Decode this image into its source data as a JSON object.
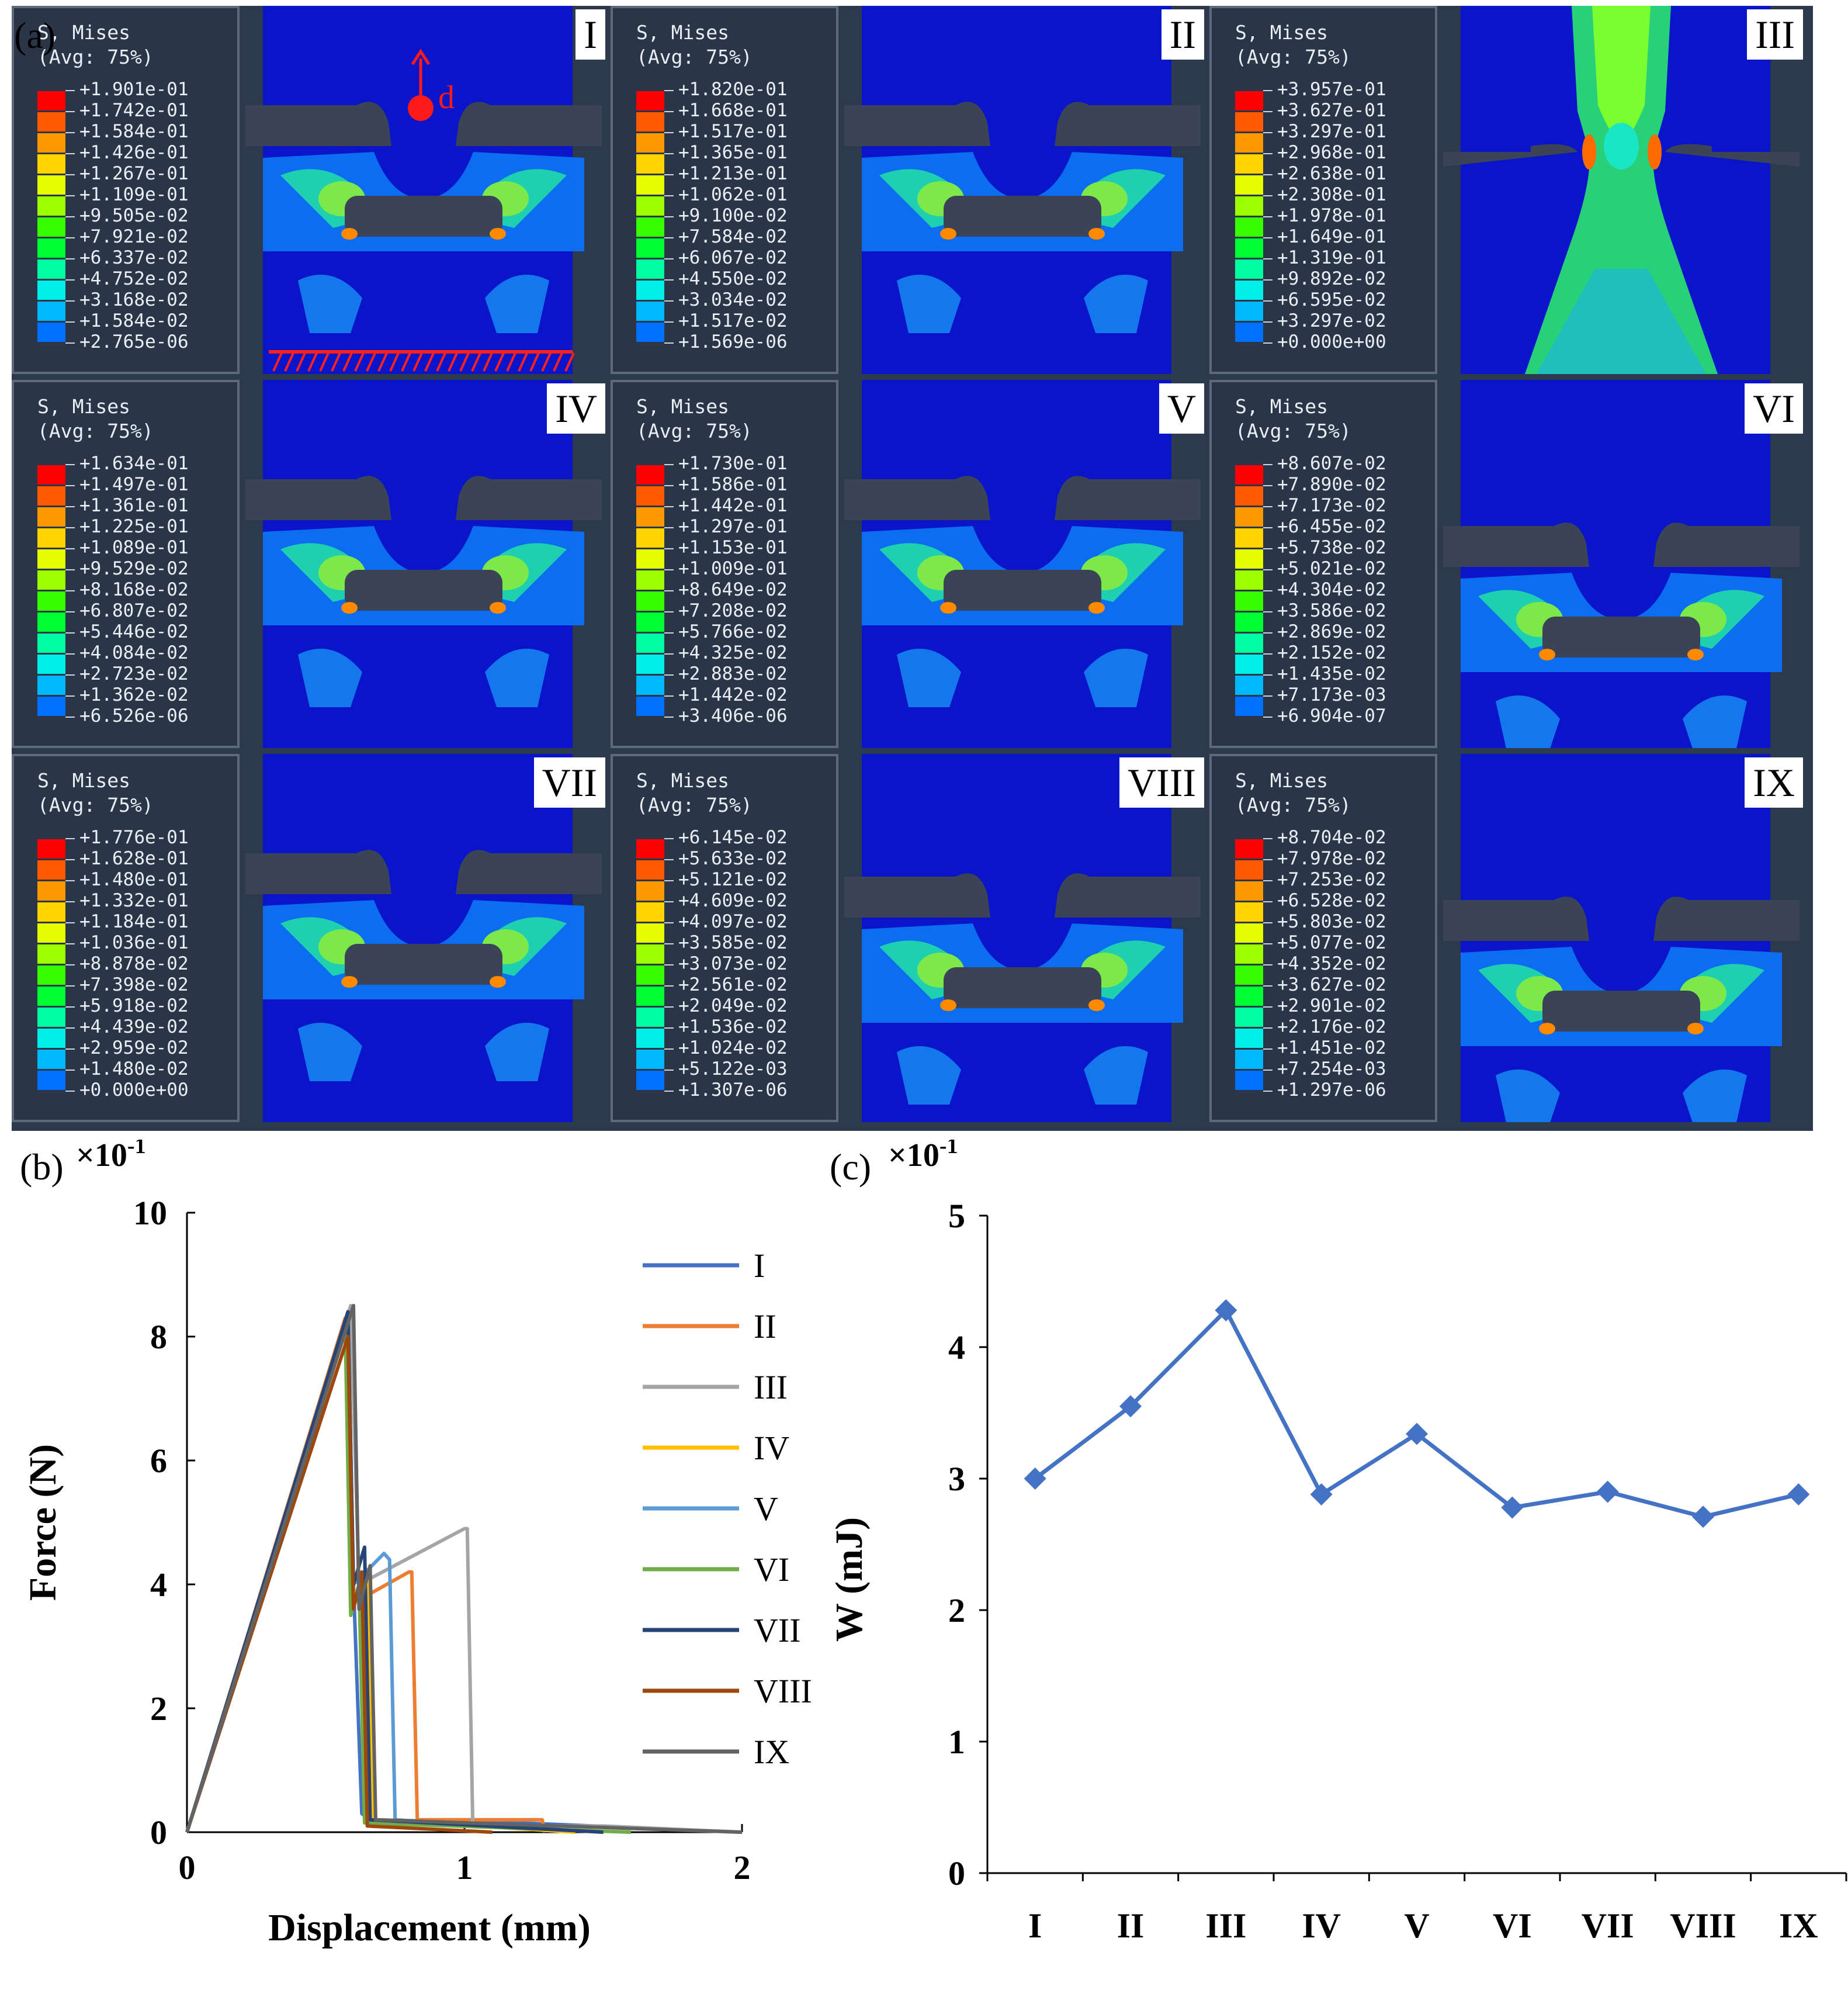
{
  "panel_labels": {
    "a": "(a)",
    "b": "(b)",
    "c": "(c)"
  },
  "load_annotation": "d",
  "contour_colors": [
    "#ff0000",
    "#ff5a00",
    "#ff9900",
    "#ffd400",
    "#e6ff00",
    "#9eff00",
    "#38ff00",
    "#00ff33",
    "#00ffa0",
    "#00f0e8",
    "#00b8ff",
    "#0070ff",
    "#0000ff"
  ],
  "fem_panels": [
    {
      "label": "I",
      "title": "S, Mises",
      "avg": "(Avg: 75%)",
      "values": [
        "+1.901e-01",
        "+1.742e-01",
        "+1.584e-01",
        "+1.426e-01",
        "+1.267e-01",
        "+1.109e-01",
        "+9.505e-02",
        "+7.921e-02",
        "+6.337e-02",
        "+4.752e-02",
        "+3.168e-02",
        "+1.584e-02",
        "+2.765e-06"
      ]
    },
    {
      "label": "II",
      "title": "S, Mises",
      "avg": "(Avg: 75%)",
      "values": [
        "+1.820e-01",
        "+1.668e-01",
        "+1.517e-01",
        "+1.365e-01",
        "+1.213e-01",
        "+1.062e-01",
        "+9.100e-02",
        "+7.584e-02",
        "+6.067e-02",
        "+4.550e-02",
        "+3.034e-02",
        "+1.517e-02",
        "+1.569e-06"
      ]
    },
    {
      "label": "III",
      "title": "S, Mises",
      "avg": "(Avg: 75%)",
      "values": [
        "+3.957e-01",
        "+3.627e-01",
        "+3.297e-01",
        "+2.968e-01",
        "+2.638e-01",
        "+2.308e-01",
        "+1.978e-01",
        "+1.649e-01",
        "+1.319e-01",
        "+9.892e-02",
        "+6.595e-02",
        "+3.297e-02",
        "+0.000e+00"
      ]
    },
    {
      "label": "IV",
      "title": "S, Mises",
      "avg": "(Avg: 75%)",
      "values": [
        "+1.634e-01",
        "+1.497e-01",
        "+1.361e-01",
        "+1.225e-01",
        "+1.089e-01",
        "+9.529e-02",
        "+8.168e-02",
        "+6.807e-02",
        "+5.446e-02",
        "+4.084e-02",
        "+2.723e-02",
        "+1.362e-02",
        "+6.526e-06"
      ]
    },
    {
      "label": "V",
      "title": "S, Mises",
      "avg": "(Avg: 75%)",
      "values": [
        "+1.730e-01",
        "+1.586e-01",
        "+1.442e-01",
        "+1.297e-01",
        "+1.153e-01",
        "+1.009e-01",
        "+8.649e-02",
        "+7.208e-02",
        "+5.766e-02",
        "+4.325e-02",
        "+2.883e-02",
        "+1.442e-02",
        "+3.406e-06"
      ]
    },
    {
      "label": "VI",
      "title": "S, Mises",
      "avg": "(Avg: 75%)",
      "values": [
        "+8.607e-02",
        "+7.890e-02",
        "+7.173e-02",
        "+6.455e-02",
        "+5.738e-02",
        "+5.021e-02",
        "+4.304e-02",
        "+3.586e-02",
        "+2.869e-02",
        "+2.152e-02",
        "+1.435e-02",
        "+7.173e-03",
        "+6.904e-07"
      ]
    },
    {
      "label": "VII",
      "title": "S, Mises",
      "avg": "(Avg: 75%)",
      "values": [
        "+1.776e-01",
        "+1.628e-01",
        "+1.480e-01",
        "+1.332e-01",
        "+1.184e-01",
        "+1.036e-01",
        "+8.878e-02",
        "+7.398e-02",
        "+5.918e-02",
        "+4.439e-02",
        "+2.959e-02",
        "+1.480e-02",
        "+0.000e+00"
      ]
    },
    {
      "label": "VIII",
      "title": "S, Mises",
      "avg": "(Avg: 75%)",
      "values": [
        "+6.145e-02",
        "+5.633e-02",
        "+5.121e-02",
        "+4.609e-02",
        "+4.097e-02",
        "+3.585e-02",
        "+3.073e-02",
        "+2.561e-02",
        "+2.049e-02",
        "+1.536e-02",
        "+1.024e-02",
        "+5.122e-03",
        "+1.307e-06"
      ]
    },
    {
      "label": "IX",
      "title": "S, Mises",
      "avg": "(Avg: 75%)",
      "values": [
        "+8.704e-02",
        "+7.978e-02",
        "+7.253e-02",
        "+6.528e-02",
        "+5.803e-02",
        "+5.077e-02",
        "+4.352e-02",
        "+3.627e-02",
        "+2.901e-02",
        "+2.176e-02",
        "+1.451e-02",
        "+7.254e-03",
        "+1.297e-06"
      ]
    }
  ],
  "chart_data": [
    {
      "type": "line",
      "title": "",
      "xlabel": "Displacement (mm)",
      "ylabel": "Force (N)",
      "multiplier": "×10",
      "multiplier_exp": "-1",
      "xlim": [
        0,
        2
      ],
      "ylim": [
        0,
        10
      ],
      "xticks": [
        "0",
        "1",
        "2"
      ],
      "yticks": [
        "0",
        "2",
        "4",
        "6",
        "8",
        "10"
      ],
      "series": [
        {
          "name": "I",
          "color": "#4472c4",
          "x": [
            0,
            0.58,
            0.6,
            0.63,
            0.66,
            1.2,
            2
          ],
          "y": [
            0,
            8.4,
            4.0,
            0.3,
            0.2,
            0.15,
            0
          ]
        },
        {
          "name": "II",
          "color": "#ed7d31",
          "x": [
            0,
            0.57,
            0.6,
            0.8,
            0.81,
            0.83,
            1.28,
            1.29
          ],
          "y": [
            0,
            8.3,
            3.7,
            4.2,
            4.2,
            0.2,
            0.2,
            0
          ]
        },
        {
          "name": "III",
          "color": "#a5a5a5",
          "x": [
            0,
            0.59,
            0.62,
            1.0,
            1.01,
            1.03,
            1.5,
            2
          ],
          "y": [
            0,
            8.5,
            4.0,
            4.9,
            4.9,
            0.1,
            0.1,
            0
          ]
        },
        {
          "name": "IV",
          "color": "#ffc000",
          "x": [
            0,
            0.58,
            0.6,
            0.65,
            0.67,
            1.4
          ],
          "y": [
            0,
            8.4,
            3.8,
            4.2,
            0.2,
            0
          ]
        },
        {
          "name": "V",
          "color": "#5b9bd5",
          "x": [
            0,
            0.58,
            0.6,
            0.71,
            0.73,
            0.75,
            1.5
          ],
          "y": [
            0,
            8.4,
            4.0,
            4.5,
            4.4,
            0.2,
            0
          ]
        },
        {
          "name": "VI",
          "color": "#70ad47",
          "x": [
            0,
            0.57,
            0.59,
            0.62,
            0.64,
            1.6
          ],
          "y": [
            0,
            8.2,
            3.5,
            4.0,
            0.15,
            0
          ]
        },
        {
          "name": "VII",
          "color": "#264478",
          "x": [
            0,
            0.58,
            0.6,
            0.64,
            0.66,
            1.5
          ],
          "y": [
            0,
            8.4,
            4.0,
            4.6,
            0.2,
            0
          ]
        },
        {
          "name": "VIII",
          "color": "#9e480e",
          "x": [
            0,
            0.58,
            0.6,
            0.63,
            0.65,
            1.1
          ],
          "y": [
            0,
            8.0,
            3.6,
            4.2,
            0.1,
            0
          ]
        },
        {
          "name": "IX",
          "color": "#636363",
          "x": [
            0,
            0.6,
            0.62,
            0.66,
            0.68,
            2
          ],
          "y": [
            0,
            8.5,
            3.6,
            4.3,
            0.2,
            0
          ]
        }
      ]
    },
    {
      "type": "line",
      "title": "",
      "xlabel": "",
      "ylabel": "W (mJ)",
      "multiplier": "×10",
      "multiplier_exp": "-1",
      "ylim": [
        0,
        5
      ],
      "yticks": [
        "0",
        "1",
        "2",
        "3",
        "4",
        "5"
      ],
      "categories": [
        "I",
        "II",
        "III",
        "IV",
        "V",
        "VI",
        "VII",
        "VIII",
        "IX"
      ],
      "series": [
        {
          "name": "W",
          "color": "#4472c4",
          "values": [
            3.0,
            3.55,
            4.28,
            2.88,
            3.34,
            2.78,
            2.9,
            2.71,
            2.88
          ]
        }
      ]
    }
  ]
}
